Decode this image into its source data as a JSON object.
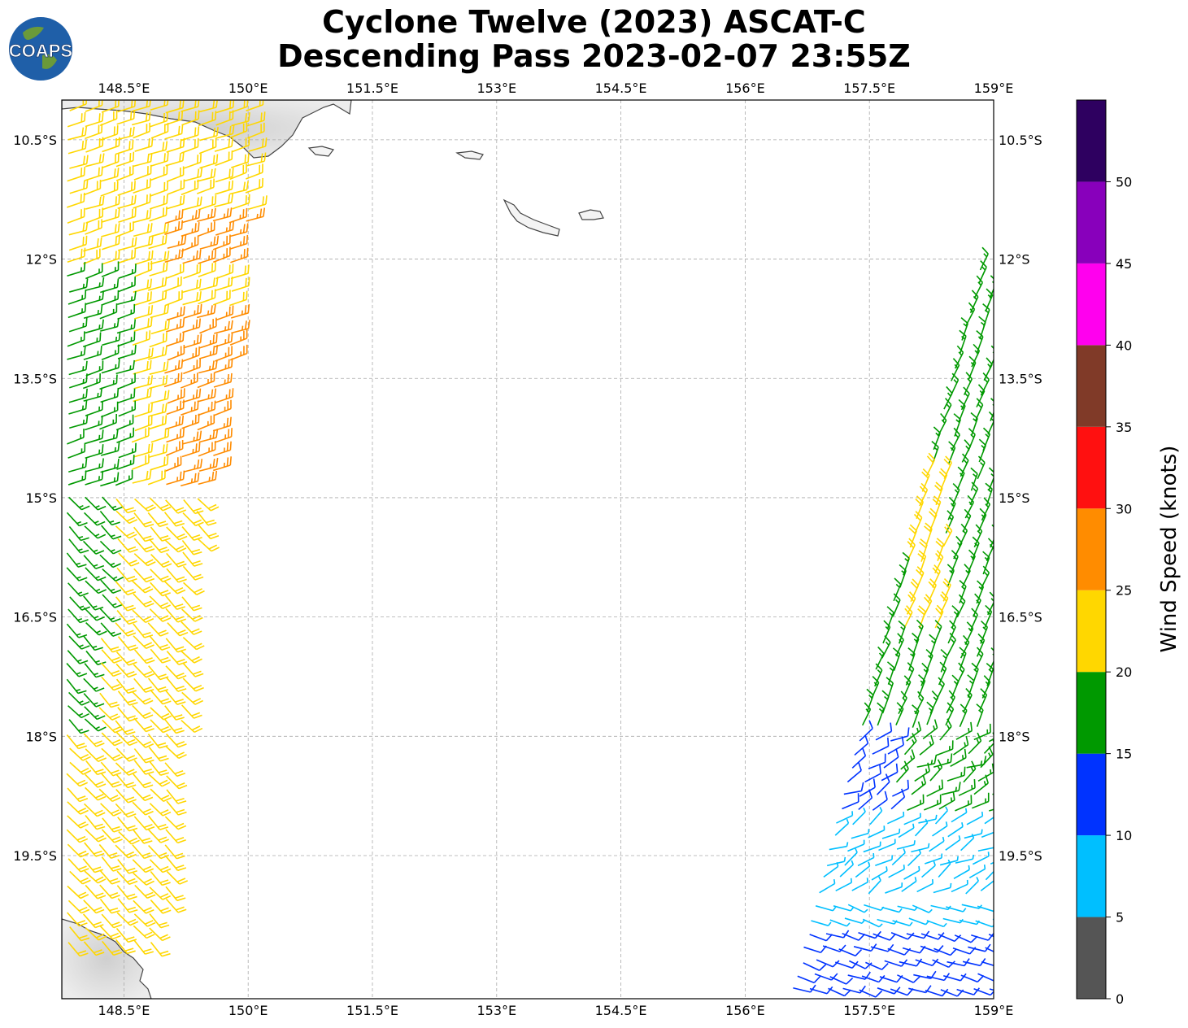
{
  "title": {
    "line1": "Cyclone Twelve (2023) ASCAT-C",
    "line2": "Descending Pass 2023-02-07 23:55Z"
  },
  "logo": {
    "text": "COAPS",
    "ocean_color": "#1f5fa8",
    "land_color": "#6a9a3a"
  },
  "map": {
    "lon_range": [
      147.75,
      159.0
    ],
    "lat_range": [
      -21.3,
      -10.0
    ],
    "lon_ticks": [
      {
        "value": 148.5,
        "label": "148.5°E"
      },
      {
        "value": 150.0,
        "label": "150°E"
      },
      {
        "value": 151.5,
        "label": "151.5°E"
      },
      {
        "value": 153.0,
        "label": "153°E"
      },
      {
        "value": 154.5,
        "label": "154.5°E"
      },
      {
        "value": 156.0,
        "label": "156°E"
      },
      {
        "value": 157.5,
        "label": "157.5°E"
      },
      {
        "value": 159.0,
        "label": "159°E"
      }
    ],
    "lat_ticks": [
      {
        "value": -10.5,
        "label": "10.5°S"
      },
      {
        "value": -12.0,
        "label": "12°S"
      },
      {
        "value": -13.5,
        "label": "13.5°S"
      },
      {
        "value": -15.0,
        "label": "15°S"
      },
      {
        "value": -16.5,
        "label": "16.5°S"
      },
      {
        "value": -18.0,
        "label": "18°S"
      },
      {
        "value": -19.5,
        "label": "19.5°S"
      }
    ],
    "grid": true
  },
  "colorbar": {
    "title": "Wind Speed (knots)",
    "bins": [
      {
        "from": 0,
        "to": 5,
        "color": "#555555"
      },
      {
        "from": 5,
        "to": 10,
        "color": "#00bfff"
      },
      {
        "from": 10,
        "to": 15,
        "color": "#0033ff"
      },
      {
        "from": 15,
        "to": 20,
        "color": "#009900"
      },
      {
        "from": 20,
        "to": 25,
        "color": "#ffd700"
      },
      {
        "from": 25,
        "to": 30,
        "color": "#ff8c00"
      },
      {
        "from": 30,
        "to": 35,
        "color": "#ff1010"
      },
      {
        "from": 35,
        "to": 40,
        "color": "#803a28"
      },
      {
        "from": 40,
        "to": 45,
        "color": "#ff00ee"
      },
      {
        "from": 45,
        "to": 50,
        "color": "#8800bb"
      },
      {
        "from": 50,
        "to": 55,
        "color": "#2e0060"
      }
    ],
    "tick_labels": [
      "0",
      "5",
      "10",
      "15",
      "20",
      "25",
      "30",
      "35",
      "40",
      "45",
      "50"
    ]
  }
}
